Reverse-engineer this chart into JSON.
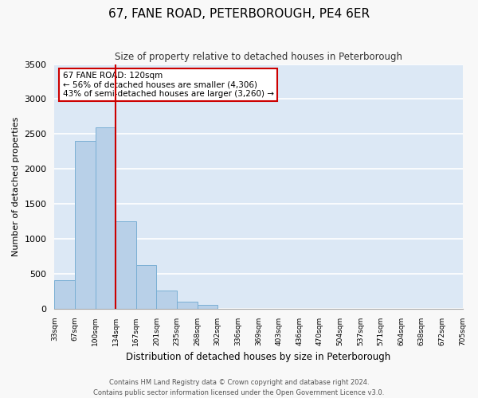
{
  "title": "67, FANE ROAD, PETERBOROUGH, PE4 6ER",
  "subtitle": "Size of property relative to detached houses in Peterborough",
  "xlabel": "Distribution of detached houses by size in Peterborough",
  "ylabel": "Number of detached properties",
  "bar_color": "#b8d0e8",
  "bar_edge_color": "#7aafd4",
  "background_color": "#dce8f5",
  "grid_color": "#ffffff",
  "vline_color": "#cc0000",
  "vline_x_index": 3,
  "annotation_title": "67 FANE ROAD: 120sqm",
  "annotation_line1": "← 56% of detached houses are smaller (4,306)",
  "annotation_line2": "43% of semi-detached houses are larger (3,260) →",
  "annotation_box_color": "#cc0000",
  "categories": [
    "33sqm",
    "67sqm",
    "100sqm",
    "134sqm",
    "167sqm",
    "201sqm",
    "235sqm",
    "268sqm",
    "302sqm",
    "336sqm",
    "369sqm",
    "403sqm",
    "436sqm",
    "470sqm",
    "504sqm",
    "537sqm",
    "571sqm",
    "604sqm",
    "638sqm",
    "672sqm",
    "705sqm"
  ],
  "bar_heights": [
    400,
    2400,
    2600,
    1250,
    620,
    260,
    100,
    50,
    0,
    0,
    0,
    0,
    0,
    0,
    0,
    0,
    0,
    0,
    0,
    0
  ],
  "ylim": [
    0,
    3500
  ],
  "yticks": [
    0,
    500,
    1000,
    1500,
    2000,
    2500,
    3000,
    3500
  ],
  "fig_facecolor": "#f8f8f8",
  "footer_line1": "Contains HM Land Registry data © Crown copyright and database right 2024.",
  "footer_line2": "Contains public sector information licensed under the Open Government Licence v3.0."
}
